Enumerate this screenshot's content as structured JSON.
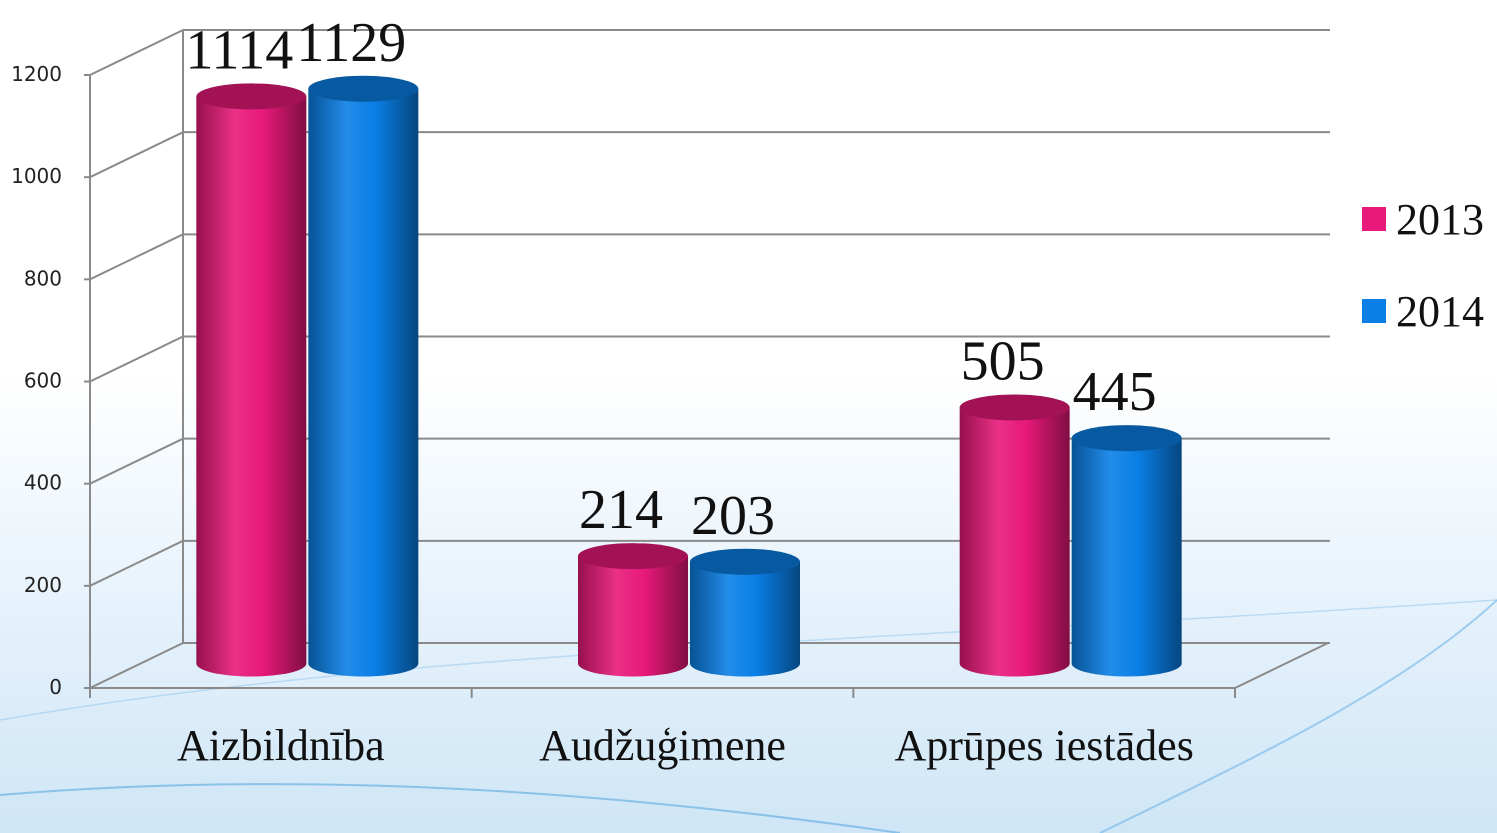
{
  "chart_data": {
    "type": "bar3d",
    "categories": [
      "Aizbildnība",
      "Audžuģimene",
      "Aprūpes iestādes"
    ],
    "series": [
      {
        "name": "2013",
        "color": "#e8197a",
        "values": [
          1114,
          214,
          505
        ]
      },
      {
        "name": "2014",
        "color": "#0a7fe6",
        "values": [
          1129,
          203,
          445
        ]
      }
    ],
    "ylim": [
      0,
      1200
    ],
    "yticks": [
      0,
      200,
      400,
      600,
      800,
      1000,
      1200
    ],
    "grid": true,
    "legend": "right"
  }
}
